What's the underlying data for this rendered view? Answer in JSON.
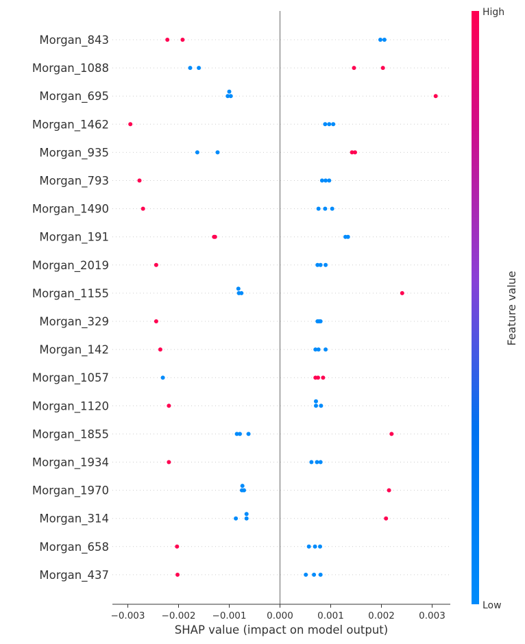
{
  "chart_data": {
    "type": "scatter",
    "subtype": "shap_beeswarm",
    "title": "",
    "xlabel": "SHAP value (impact on model output)",
    "xlim": [
      -0.0033,
      0.00335
    ],
    "xticks": [
      -0.003,
      -0.002,
      -0.001,
      0.0,
      0.001,
      0.002,
      0.003
    ],
    "xtick_labels": [
      "−0.003",
      "−0.002",
      "−0.001",
      "0.000",
      "0.001",
      "0.002",
      "0.003"
    ],
    "grid": false,
    "colorbar": {
      "title": "Feature value",
      "high_label": "High",
      "low_label": "Low",
      "low_color": "#008bfb",
      "high_color": "#ff0051"
    },
    "features": [
      {
        "name": "Morgan_843",
        "points": [
          {
            "x": -0.00222,
            "dy": 0,
            "level": "high"
          },
          {
            "x": -0.00192,
            "dy": 0,
            "level": "high"
          },
          {
            "x": 0.00198,
            "dy": 0,
            "level": "low"
          },
          {
            "x": 0.00206,
            "dy": 0,
            "level": "low"
          }
        ]
      },
      {
        "name": "Morgan_1088",
        "points": [
          {
            "x": -0.00177,
            "dy": 0,
            "level": "low"
          },
          {
            "x": -0.0016,
            "dy": 0,
            "level": "low"
          },
          {
            "x": 0.00146,
            "dy": 0,
            "level": "high"
          },
          {
            "x": 0.00203,
            "dy": 0,
            "level": "high"
          }
        ]
      },
      {
        "name": "Morgan_695",
        "points": [
          {
            "x": -0.001,
            "dy": -1,
            "level": "low"
          },
          {
            "x": -0.00103,
            "dy": 0,
            "level": "low"
          },
          {
            "x": -0.00097,
            "dy": 0,
            "level": "low"
          },
          {
            "x": 0.00307,
            "dy": 0,
            "level": "high"
          }
        ]
      },
      {
        "name": "Morgan_1462",
        "points": [
          {
            "x": -0.00295,
            "dy": 0,
            "level": "high"
          },
          {
            "x": 0.00089,
            "dy": 0,
            "level": "low"
          },
          {
            "x": 0.00097,
            "dy": 0,
            "level": "low"
          },
          {
            "x": 0.00105,
            "dy": 0,
            "level": "low"
          }
        ]
      },
      {
        "name": "Morgan_935",
        "points": [
          {
            "x": -0.00163,
            "dy": 0,
            "level": "low"
          },
          {
            "x": -0.00123,
            "dy": 0,
            "level": "low"
          },
          {
            "x": 0.00142,
            "dy": 0,
            "level": "high"
          },
          {
            "x": 0.00148,
            "dy": 0,
            "level": "high"
          }
        ]
      },
      {
        "name": "Morgan_793",
        "points": [
          {
            "x": -0.00277,
            "dy": 0,
            "level": "high"
          },
          {
            "x": 0.00083,
            "dy": 0,
            "level": "low"
          },
          {
            "x": 0.0009,
            "dy": 0,
            "level": "low"
          },
          {
            "x": 0.00097,
            "dy": 0,
            "level": "low"
          }
        ]
      },
      {
        "name": "Morgan_1490",
        "points": [
          {
            "x": -0.0027,
            "dy": 0,
            "level": "high"
          },
          {
            "x": 0.00076,
            "dy": 0,
            "level": "low"
          },
          {
            "x": 0.00089,
            "dy": 0,
            "level": "low"
          },
          {
            "x": 0.00103,
            "dy": 0,
            "level": "low"
          }
        ]
      },
      {
        "name": "Morgan_191",
        "points": [
          {
            "x": -0.0013,
            "dy": 0,
            "level": "high"
          },
          {
            "x": -0.00128,
            "dy": 0,
            "level": "high"
          },
          {
            "x": 0.00129,
            "dy": 0,
            "level": "low"
          },
          {
            "x": 0.00134,
            "dy": 0,
            "level": "low"
          }
        ]
      },
      {
        "name": "Morgan_2019",
        "points": [
          {
            "x": -0.00244,
            "dy": 0,
            "level": "high"
          },
          {
            "x": 0.00074,
            "dy": 0,
            "level": "low"
          },
          {
            "x": 0.0008,
            "dy": 0,
            "level": "low"
          },
          {
            "x": 0.0009,
            "dy": 0,
            "level": "low"
          }
        ]
      },
      {
        "name": "Morgan_1155",
        "points": [
          {
            "x": -0.00082,
            "dy": -1,
            "level": "low"
          },
          {
            "x": -0.00081,
            "dy": 0,
            "level": "low"
          },
          {
            "x": -0.00076,
            "dy": 0,
            "level": "low"
          },
          {
            "x": 0.00241,
            "dy": 0,
            "level": "high"
          }
        ]
      },
      {
        "name": "Morgan_329",
        "points": [
          {
            "x": -0.00244,
            "dy": 0,
            "level": "high"
          },
          {
            "x": 0.00074,
            "dy": 0,
            "level": "low"
          },
          {
            "x": 0.00077,
            "dy": 0,
            "level": "low"
          },
          {
            "x": 0.0008,
            "dy": 0,
            "level": "low"
          }
        ]
      },
      {
        "name": "Morgan_142",
        "points": [
          {
            "x": -0.00236,
            "dy": 0,
            "level": "high"
          },
          {
            "x": 0.0007,
            "dy": 0,
            "level": "low"
          },
          {
            "x": 0.00076,
            "dy": 0,
            "level": "low"
          },
          {
            "x": 0.0009,
            "dy": 0,
            "level": "low"
          }
        ]
      },
      {
        "name": "Morgan_1057",
        "points": [
          {
            "x": -0.00231,
            "dy": 0,
            "level": "low"
          },
          {
            "x": 0.0007,
            "dy": 0,
            "level": "high"
          },
          {
            "x": 0.00075,
            "dy": 0,
            "level": "high"
          },
          {
            "x": 0.00085,
            "dy": 0,
            "level": "high"
          }
        ]
      },
      {
        "name": "Morgan_1120",
        "points": [
          {
            "x": -0.00219,
            "dy": 0,
            "level": "high"
          },
          {
            "x": 0.00071,
            "dy": -1,
            "level": "low"
          },
          {
            "x": 0.00071,
            "dy": 0,
            "level": "low"
          },
          {
            "x": 0.00081,
            "dy": 0,
            "level": "low"
          }
        ]
      },
      {
        "name": "Morgan_1855",
        "points": [
          {
            "x": -0.00085,
            "dy": 0,
            "level": "low"
          },
          {
            "x": -0.00079,
            "dy": 0,
            "level": "low"
          },
          {
            "x": -0.00062,
            "dy": 0,
            "level": "low"
          },
          {
            "x": 0.0022,
            "dy": 0,
            "level": "high"
          }
        ]
      },
      {
        "name": "Morgan_1934",
        "points": [
          {
            "x": -0.00219,
            "dy": 0,
            "level": "high"
          },
          {
            "x": 0.00062,
            "dy": 0,
            "level": "low"
          },
          {
            "x": 0.00073,
            "dy": 0,
            "level": "low"
          },
          {
            "x": 0.0008,
            "dy": 0,
            "level": "low"
          }
        ]
      },
      {
        "name": "Morgan_1970",
        "points": [
          {
            "x": -0.00074,
            "dy": -1,
            "level": "low"
          },
          {
            "x": -0.00075,
            "dy": 0,
            "level": "low"
          },
          {
            "x": -0.00071,
            "dy": 0,
            "level": "low"
          },
          {
            "x": 0.00215,
            "dy": 0,
            "level": "high"
          }
        ]
      },
      {
        "name": "Morgan_314",
        "points": [
          {
            "x": -0.00066,
            "dy": -1,
            "level": "low"
          },
          {
            "x": -0.00087,
            "dy": 0,
            "level": "low"
          },
          {
            "x": -0.00066,
            "dy": 0,
            "level": "low"
          },
          {
            "x": 0.00209,
            "dy": 0,
            "level": "high"
          }
        ]
      },
      {
        "name": "Morgan_658",
        "points": [
          {
            "x": -0.00203,
            "dy": 0,
            "level": "high"
          },
          {
            "x": 0.00057,
            "dy": 0,
            "level": "low"
          },
          {
            "x": 0.00069,
            "dy": 0,
            "level": "low"
          },
          {
            "x": 0.00079,
            "dy": 0,
            "level": "low"
          }
        ]
      },
      {
        "name": "Morgan_437",
        "points": [
          {
            "x": -0.00202,
            "dy": 0,
            "level": "high"
          },
          {
            "x": 0.00051,
            "dy": 0,
            "level": "low"
          },
          {
            "x": 0.00067,
            "dy": 0,
            "level": "low"
          },
          {
            "x": 0.0008,
            "dy": 0,
            "level": "low"
          }
        ]
      }
    ]
  }
}
